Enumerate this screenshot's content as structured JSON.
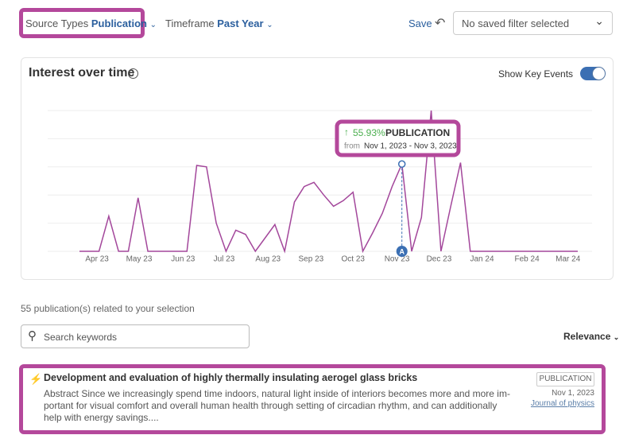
{
  "filters": {
    "source_label": "Source Types",
    "source_value": "Publication",
    "timeframe_label": "Timeframe",
    "timeframe_value": "Past Year",
    "save": "Save",
    "saved_filter": "No saved filter selected"
  },
  "chart_data": {
    "type": "line",
    "title": "Interest over time",
    "toggle_label": "Show Key Events",
    "color": "#a3479b",
    "grid": true,
    "x": [
      0,
      2,
      3,
      4,
      5,
      6,
      7,
      11,
      12,
      13,
      14,
      15,
      16,
      17,
      18,
      20,
      21,
      22,
      23,
      24,
      25,
      26,
      27,
      28,
      29,
      30,
      31,
      32,
      33,
      34,
      35,
      36,
      37,
      38,
      39,
      40,
      51
    ],
    "values": [
      0,
      0,
      1.25,
      0,
      0,
      1.9,
      0,
      0,
      3.05,
      3.0,
      1.0,
      0,
      0.75,
      0.6,
      0,
      0.95,
      0,
      1.75,
      2.3,
      2.45,
      2.0,
      1.6,
      1.8,
      2.1,
      0,
      0.65,
      1.35,
      2.3,
      3.1,
      0,
      1.2,
      5.0,
      0,
      1.6,
      3.15,
      0,
      0
    ],
    "xlim": [
      0,
      51
    ],
    "ylim": [
      0,
      5
    ],
    "yticks": [
      0,
      1,
      2,
      3,
      4,
      5
    ],
    "xticks": [
      {
        "value": 1.8,
        "label": "Apr 23"
      },
      {
        "value": 6.1,
        "label": "May 23"
      },
      {
        "value": 10.6,
        "label": "Jun 23"
      },
      {
        "value": 14.8,
        "label": "Jul 23"
      },
      {
        "value": 19.3,
        "label": "Aug 23"
      },
      {
        "value": 23.7,
        "label": "Sep 23"
      },
      {
        "value": 28.0,
        "label": "Oct 23"
      },
      {
        "value": 32.5,
        "label": "Nov 23"
      },
      {
        "value": 36.8,
        "label": "Dec 23"
      },
      {
        "value": 41.2,
        "label": "Jan 24"
      },
      {
        "value": 45.8,
        "label": "Feb 24"
      },
      {
        "value": 50.0,
        "label": "Mar 24"
      }
    ],
    "key_events": [
      {
        "x": 33,
        "label": "A"
      }
    ],
    "tooltip": {
      "change": "55.93%",
      "label": "PUBLICATION",
      "from": "from",
      "range": "Nov 1, 2023 - Nov 3, 2023"
    }
  },
  "results": {
    "count": "55 publication(s) related to your selection",
    "search_placeholder": "Search keywords",
    "sort": "Relevance",
    "items": [
      {
        "title": "Development and evaluation of highly thermally insulating aerogel glass bricks",
        "abstract": [
          "Abstract Since we increasingly spend time indoors, natural light inside of interiors becomes more and more im-",
          "portant for visual comfort and overall human health through setting of circadian rhythm, and can additionally",
          "help with energy savings...."
        ],
        "badge": "PUBLICATION",
        "date": "Nov 1, 2023",
        "journal": "Journal of physics"
      }
    ]
  }
}
